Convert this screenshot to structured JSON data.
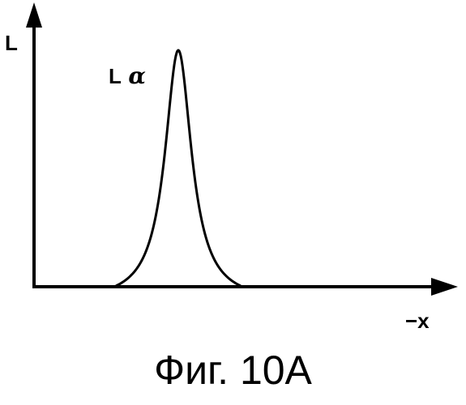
{
  "figure": {
    "y_axis_label": "L",
    "x_axis_label": "−x",
    "peak_label_letter": "L",
    "peak_label_greek": "α",
    "caption": "Фиг. 10А"
  },
  "colors": {
    "ink": "#000000",
    "background": "#ffffff"
  }
}
